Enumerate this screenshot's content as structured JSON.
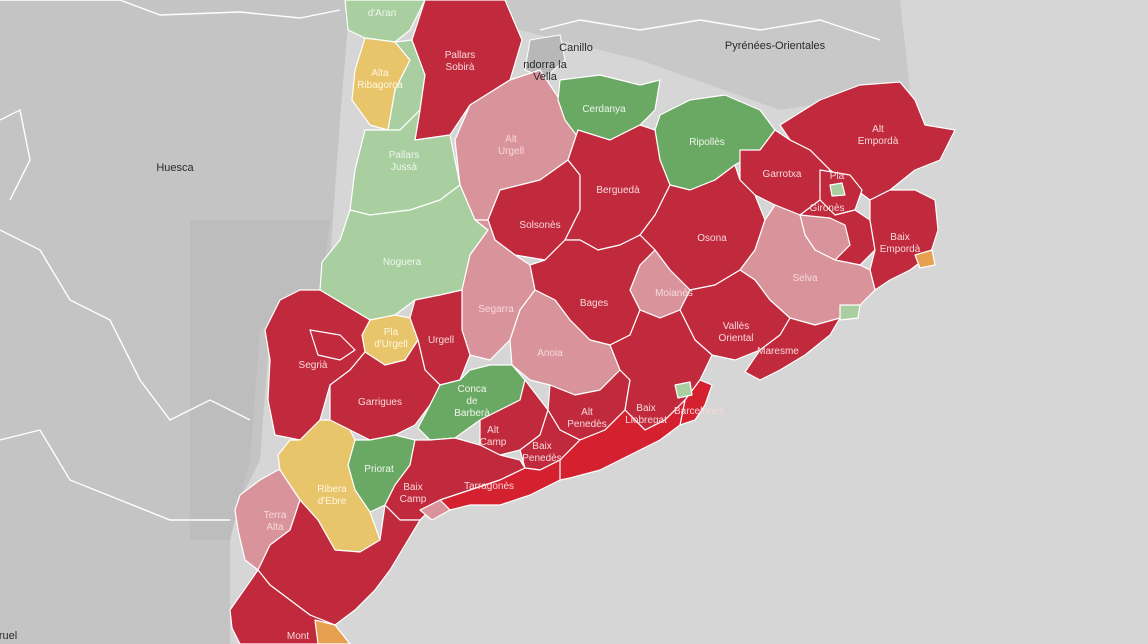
{
  "map": {
    "external_places": [
      {
        "id": "canillo",
        "text": "Canillo"
      },
      {
        "id": "andorra",
        "text": "ndorra la\nVella"
      },
      {
        "id": "pyrenees",
        "text": "Pyrénées-Orientales"
      },
      {
        "id": "huesca",
        "text": "Huesca"
      },
      {
        "id": "teruel",
        "text": "ruel"
      }
    ],
    "comarques": {
      "val_daran": "d'Aran",
      "alta_ribagorca": "Alta\nRibagorça",
      "pallars_sobira": "Pallars\nSobirà",
      "alt_urgell": "Alt\nUrgell",
      "cerdanya": "Cerdanya",
      "ripolles": "Ripollès",
      "alt_emporda": "Alt\nEmpordà",
      "garrotxa": "Garrotxa",
      "pla_estany": "Pla",
      "pallars_jussa": "Pallars\nJussà",
      "solsones": "Solsonès",
      "bergueda": "Berguedà",
      "osona": "Osona",
      "girones": "Gironès",
      "baix_emporda": "Baix\nEmpordà",
      "noguera": "Noguera",
      "selva": "Selva",
      "segarra": "Segarra",
      "moianes": "Moianès",
      "bages": "Bages",
      "pla_urgell": "Pla\nd'Urgell",
      "urgell": "Urgell",
      "anoia": "Anoia",
      "valles_oriental": "Vallès\nOriental",
      "maresme": "Maresme",
      "segria": "Segrià",
      "garrigues": "Garrigues",
      "conca_barbera": "Conca\nde\nBarberà",
      "alt_penedes": "Alt\nPenedès",
      "baix_llobregat": "Baix\nLlobregat",
      "barcelones": "Barcelonès",
      "alt_camp": "Alt\nCamp",
      "baix_penedes": "Baix\nPenedès",
      "priorat": "Priorat",
      "ribera_ebre": "Ribera\nd'Ebre",
      "baix_camp": "Baix\nCamp",
      "tarragones": "Tarragonès",
      "terra_alta": "Terra\nAlta",
      "montsia": "Mont"
    },
    "legend_colors": {
      "dark_red": "#c12a3d",
      "bright_red": "#d4202f",
      "pink": "#d9939b",
      "light_green": "#a9cfa1",
      "green": "#6aa964",
      "yellow": "#e8c46a",
      "orange": "#e6a050",
      "land_background": "#c9c9c9",
      "sea": "#d6d6d6"
    }
  }
}
